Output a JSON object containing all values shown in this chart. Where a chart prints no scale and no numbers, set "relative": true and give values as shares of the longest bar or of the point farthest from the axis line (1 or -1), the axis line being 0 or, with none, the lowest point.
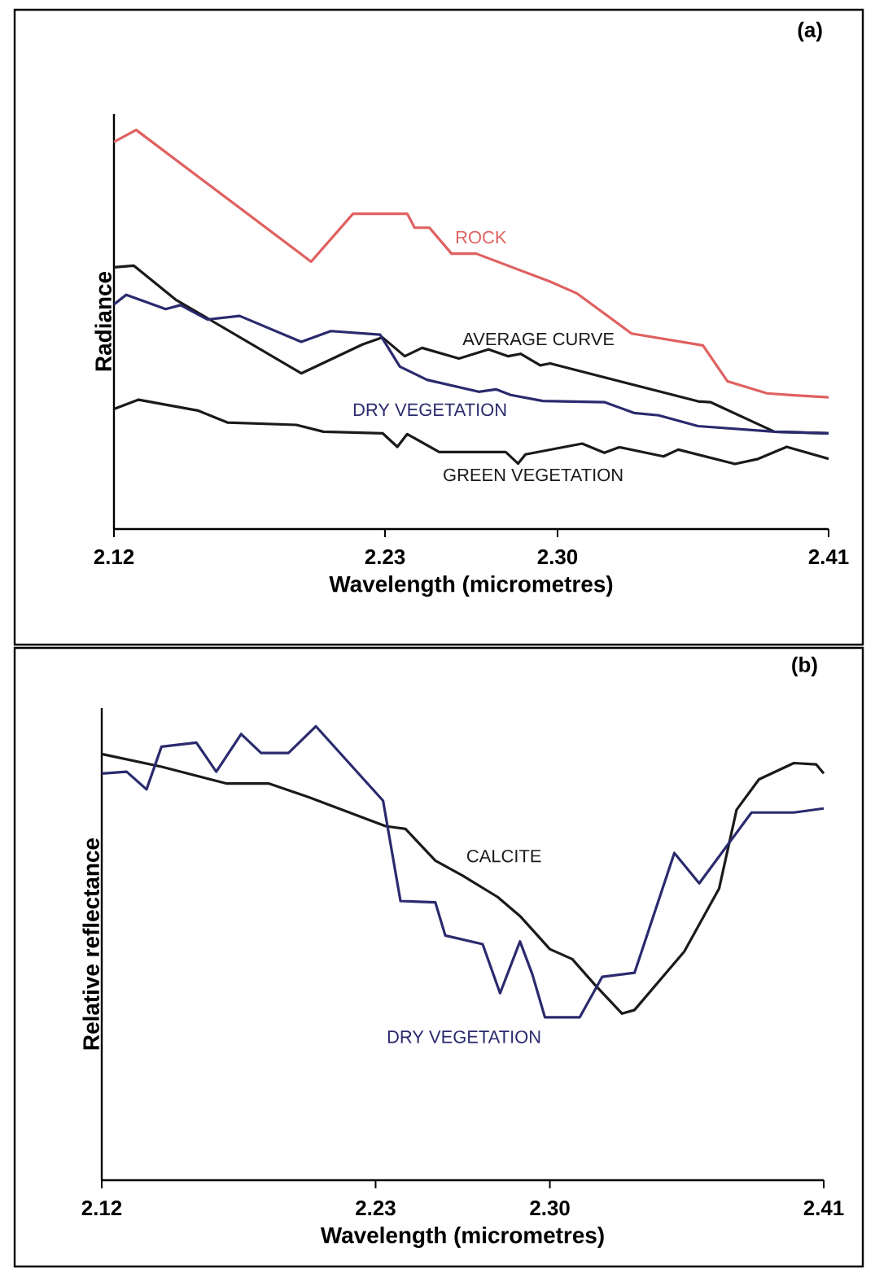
{
  "chart_data": [
    {
      "type": "line",
      "title": "(a)",
      "xlabel": "Wavelength (micrometres)",
      "ylabel": "Radiance",
      "relative": true,
      "xlim": [
        2.12,
        2.41
      ],
      "xticks": [
        2.12,
        2.23,
        {
          "value": 2.3,
          "label": "2.30"
        },
        2.41
      ],
      "series": [
        {
          "name": "ROCK",
          "color": "#e06060",
          "x": [
            2.12,
            2.129,
            2.2,
            2.217,
            2.239,
            2.242,
            2.248,
            2.257,
            2.267,
            2.297,
            2.308,
            2.33,
            2.359,
            2.369,
            2.385,
            2.396,
            2.41
          ],
          "values": [
            0.97,
            1.0,
            0.67,
            0.79,
            0.79,
            0.755,
            0.755,
            0.69,
            0.69,
            0.62,
            0.59,
            0.49,
            0.46,
            0.37,
            0.34,
            0.335,
            0.33
          ]
        },
        {
          "name": "AVERAGE CURVE",
          "color": "#1a1a1a",
          "x": [
            2.12,
            2.128,
            2.145,
            2.196,
            2.221,
            2.229,
            2.238,
            2.245,
            2.26,
            2.272,
            2.28,
            2.285,
            2.293,
            2.297,
            2.357,
            2.362,
            2.388,
            2.41
          ],
          "values": [
            0.656,
            0.66,
            0.575,
            0.39,
            0.463,
            0.48,
            0.433,
            0.454,
            0.427,
            0.45,
            0.433,
            0.439,
            0.41,
            0.415,
            0.32,
            0.318,
            0.244,
            0.24
          ]
        },
        {
          "name": "DRY VEGETATION",
          "color": "#2a2a6e",
          "x": [
            2.12,
            2.125,
            2.141,
            2.147,
            2.158,
            2.171,
            2.196,
            2.208,
            2.228,
            2.236,
            2.247,
            2.268,
            2.275,
            2.281,
            2.294,
            2.319,
            2.331,
            2.341,
            2.357,
            2.388,
            2.41
          ],
          "values": [
            0.563,
            0.587,
            0.551,
            0.561,
            0.525,
            0.534,
            0.469,
            0.496,
            0.487,
            0.407,
            0.374,
            0.344,
            0.35,
            0.336,
            0.321,
            0.318,
            0.291,
            0.285,
            0.258,
            0.244,
            0.24
          ]
        },
        {
          "name": "GREEN VEGETATION",
          "color": "#1a1a1a",
          "x": [
            2.12,
            2.13,
            2.154,
            2.166,
            2.194,
            2.205,
            2.229,
            2.235,
            2.239,
            2.252,
            2.279,
            2.284,
            2.287,
            2.31,
            2.319,
            2.325,
            2.343,
            2.349,
            2.372,
            2.381,
            2.393,
            2.41
          ],
          "values": [
            0.301,
            0.324,
            0.297,
            0.267,
            0.261,
            0.244,
            0.24,
            0.206,
            0.238,
            0.193,
            0.193,
            0.164,
            0.187,
            0.214,
            0.191,
            0.205,
            0.182,
            0.199,
            0.163,
            0.175,
            0.206,
            0.176
          ]
        }
      ]
    },
    {
      "type": "line",
      "title": "(b)",
      "xlabel": "Wavelength (micrometres)",
      "ylabel": "Relative reflectance",
      "relative": true,
      "xlim": [
        2.12,
        2.41
      ],
      "xticks": [
        2.12,
        2.23,
        {
          "value": 2.3,
          "label": "2.30"
        },
        2.41
      ],
      "series": [
        {
          "name": "CALCITE",
          "color": "#1a1a1a",
          "x": [
            2.12,
            2.144,
            2.17,
            2.187,
            2.203,
            2.234,
            2.242,
            2.254,
            2.265,
            2.279,
            2.288,
            2.3,
            2.309,
            2.318,
            2.329,
            2.334,
            2.354,
            2.368,
            2.375,
            2.384,
            2.398,
            2.407,
            2.41
          ],
          "values": [
            0.939,
            0.911,
            0.874,
            0.874,
            0.844,
            0.78,
            0.774,
            0.704,
            0.671,
            0.624,
            0.582,
            0.509,
            0.487,
            0.431,
            0.367,
            0.375,
            0.504,
            0.643,
            0.816,
            0.883,
            0.919,
            0.916,
            0.896
          ]
        },
        {
          "name": "DRY VEGETATION",
          "color": "#2a2a6e",
          "x": [
            2.12,
            2.13,
            2.138,
            2.144,
            2.158,
            2.166,
            2.176,
            2.184,
            2.195,
            2.206,
            2.233,
            2.24,
            2.254,
            2.258,
            2.273,
            2.28,
            2.288,
            2.293,
            2.298,
            2.312,
            2.321,
            2.334,
            2.35,
            2.36,
            2.381,
            2.398,
            2.41
          ],
          "values": [
            0.896,
            0.9,
            0.861,
            0.955,
            0.964,
            0.9,
            0.983,
            0.941,
            0.941,
            1.0,
            0.836,
            0.615,
            0.612,
            0.539,
            0.52,
            0.412,
            0.526,
            0.453,
            0.359,
            0.359,
            0.448,
            0.457,
            0.721,
            0.654,
            0.81,
            0.81,
            0.819
          ]
        }
      ]
    }
  ]
}
